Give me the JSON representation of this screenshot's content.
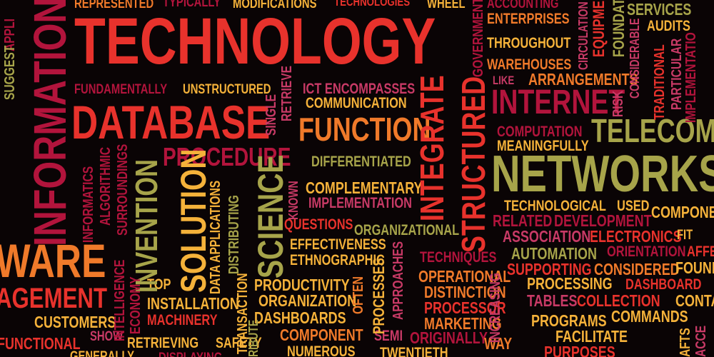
{
  "palette": {
    "red": "#e8322c",
    "orange": "#f07a2a",
    "amber": "#f5b23a",
    "olive": "#a7a44a",
    "crimson": "#b2143c",
    "pink": "#c83a66",
    "gold": "#e9a33a"
  },
  "words": [
    {
      "text": "REPRESENTED",
      "color": "#f07a2a"
    },
    {
      "text": "TYPICALLY",
      "color": "#b2143c"
    },
    {
      "text": "MODIFICATIONS",
      "color": "#f5b23a"
    },
    {
      "text": "TECHNOLOGIES",
      "color": "#e8322c"
    },
    {
      "text": "WHEEL",
      "color": "#f5b23a"
    },
    {
      "text": "ACCOUNTING",
      "color": "#b2143c"
    },
    {
      "text": "SERVICES",
      "color": "#a7a44a"
    },
    {
      "text": "ENTERPRISES",
      "color": "#f07a2a"
    },
    {
      "text": "AUDITS",
      "color": "#f5b23a"
    },
    {
      "text": "TECHNOLOGY",
      "color": "#e8322c"
    },
    {
      "text": "THROUGHOUT",
      "color": "#f5b23a"
    },
    {
      "text": "WAREHOUSES",
      "color": "#f07a2a"
    },
    {
      "text": "ARRANGEMENTS",
      "color": "#f07a2a"
    },
    {
      "text": "LIKE",
      "color": "#c83a66"
    },
    {
      "text": "FUNDAMENTALLY",
      "color": "#b2143c"
    },
    {
      "text": "UNSTRUCTURED",
      "color": "#f5b23a"
    },
    {
      "text": "ICT ENCOMPASSES",
      "color": "#c83a66"
    },
    {
      "text": "COMMUNICATION",
      "color": "#f5b23a"
    },
    {
      "text": "INTERNET",
      "color": "#b2143c"
    },
    {
      "text": "DATABASE",
      "color": "#e8322c"
    },
    {
      "text": "FUNCTION",
      "color": "#f07a2a"
    },
    {
      "text": "COMPUTATION",
      "color": "#b2143c"
    },
    {
      "text": "TELECOMM",
      "color": "#a7a44a"
    },
    {
      "text": "MEANINGFULLY",
      "color": "#f5b23a"
    },
    {
      "text": "PROCEDURE",
      "color": "#b2143c"
    },
    {
      "text": "DIFFERENTIATED",
      "color": "#a7a44a"
    },
    {
      "text": "NETWORKSO",
      "color": "#a7a44a"
    },
    {
      "text": "COMPLEMENTARY",
      "color": "#f5b23a"
    },
    {
      "text": "IMPLEMENTATION",
      "color": "#c83a66"
    },
    {
      "text": "TECHNOLOGICAL",
      "color": "#f5b23a"
    },
    {
      "text": "USED",
      "color": "#f5b23a"
    },
    {
      "text": "COMPONE",
      "color": "#f5b23a"
    },
    {
      "text": "RELATED",
      "color": "#b2143c"
    },
    {
      "text": "DEVELOPMENT",
      "color": "#b2143c"
    },
    {
      "text": "QUESTIONS",
      "color": "#e8322c"
    },
    {
      "text": "ORGANIZATIONAL",
      "color": "#a7a44a"
    },
    {
      "text": "ASSOCIATION",
      "color": "#c83a66"
    },
    {
      "text": "ELECTRONICS",
      "color": "#e8322c"
    },
    {
      "text": "FIT",
      "color": "#f5b23a"
    },
    {
      "text": "EFFECTIVENESS",
      "color": "#f5b23a"
    },
    {
      "text": "ORIENTATION",
      "color": "#b2143c"
    },
    {
      "text": "AFFE",
      "color": "#e8322c"
    },
    {
      "text": "WARE",
      "color": "#f07a2a"
    },
    {
      "text": "ETHNOGRAPHIC",
      "color": "#f5b23a"
    },
    {
      "text": "TECHNIQUES",
      "color": "#b2143c"
    },
    {
      "text": "AUTOMATION",
      "color": "#a7a44a"
    },
    {
      "text": "SUPPORTING",
      "color": "#e8322c"
    },
    {
      "text": "CONSIDERED",
      "color": "#f07a2a"
    },
    {
      "text": "FOUND",
      "color": "#f5b23a"
    },
    {
      "text": "TOP",
      "color": "#f5b23a"
    },
    {
      "text": "PRODUCTIVITY",
      "color": "#f5b23a"
    },
    {
      "text": "OPERATIONAL",
      "color": "#f07a2a"
    },
    {
      "text": "PROCESSING",
      "color": "#f5b23a"
    },
    {
      "text": "DASHBOARD",
      "color": "#e8322c"
    },
    {
      "text": "AGEMENT",
      "color": "#e8322c"
    },
    {
      "text": "ORGANIZATION",
      "color": "#f5b23a"
    },
    {
      "text": "DISTINCTION",
      "color": "#f07a2a"
    },
    {
      "text": "TABLES",
      "color": "#c83a66"
    },
    {
      "text": "COLLECTION",
      "color": "#e8322c"
    },
    {
      "text": "CONTAINI",
      "color": "#f5b23a"
    },
    {
      "text": "INSTALLATION",
      "color": "#f5b23a"
    },
    {
      "text": "PROCESSOR",
      "color": "#e8322c"
    },
    {
      "text": "CUSTOMERS",
      "color": "#f5b23a"
    },
    {
      "text": "MACHINERY",
      "color": "#e8322c"
    },
    {
      "text": "DASHBOARDS",
      "color": "#f5b23a"
    },
    {
      "text": "MARKETING",
      "color": "#f07a2a"
    },
    {
      "text": "PROGRAMS",
      "color": "#f5b23a"
    },
    {
      "text": "COMMANDS",
      "color": "#f5b23a"
    },
    {
      "text": "FUNCTIONAL",
      "color": "#e8322c"
    },
    {
      "text": "SHOW",
      "color": "#c83a66"
    },
    {
      "text": "RETRIEVING",
      "color": "#f5b23a"
    },
    {
      "text": "SAFETY",
      "color": "#f5b23a"
    },
    {
      "text": "COMPONENT",
      "color": "#f07a2a"
    },
    {
      "text": "SEMI",
      "color": "#c83a66"
    },
    {
      "text": "ORIGINALLY",
      "color": "#b2143c"
    },
    {
      "text": "WAY",
      "color": "#f07a2a"
    },
    {
      "text": "FACILITATE",
      "color": "#f5b23a"
    },
    {
      "text": "GENERALLY",
      "color": "#f5b23a"
    },
    {
      "text": "DISPLAYING",
      "color": "#b2143c"
    },
    {
      "text": "NUMEROUS",
      "color": "#f5b23a"
    },
    {
      "text": "TWENTIETH",
      "color": "#f5b23a"
    },
    {
      "text": "PURPOSES",
      "color": "#e8322c"
    },
    {
      "text": "INFORMATION",
      "color": "#b2143c"
    },
    {
      "text": "APPLI",
      "color": "#b2143c"
    },
    {
      "text": "SUGGEST",
      "color": "#a7a44a"
    },
    {
      "text": "INTEGRATE",
      "color": "#e8322c"
    },
    {
      "text": "STRUCTURED",
      "color": "#e8322c"
    },
    {
      "text": "SCIENCE",
      "color": "#a7a44a"
    },
    {
      "text": "SOLUTION",
      "color": "#f5b23a"
    },
    {
      "text": "INVENTION",
      "color": "#a7a44a"
    },
    {
      "text": "INFORMATICS",
      "color": "#b2143c"
    },
    {
      "text": "ALGORITHMIC",
      "color": "#b2143c"
    },
    {
      "text": "SURROUNDINGS",
      "color": "#b2143c"
    },
    {
      "text": "INTELLIGENCE",
      "color": "#b2143c"
    },
    {
      "text": "ECONOMY",
      "color": "#b2143c"
    },
    {
      "text": "DATA APPLICATIONS",
      "color": "#f5b23a"
    },
    {
      "text": "DISTRIBUTING",
      "color": "#a7a44a"
    },
    {
      "text": "TRANSACTION",
      "color": "#f5b23a"
    },
    {
      "text": "RETRIEVE",
      "color": "#c83a66"
    },
    {
      "text": "SINGLE",
      "color": "#c83a66"
    },
    {
      "text": "KNOWN",
      "color": "#c83a66"
    },
    {
      "text": "APPROACHES",
      "color": "#c83a66"
    },
    {
      "text": "PROCESSES",
      "color": "#f5b23a"
    },
    {
      "text": "OFTEN",
      "color": "#f07a2a"
    },
    {
      "text": "RIBUTE",
      "color": "#a7a44a"
    },
    {
      "text": "INCREASING",
      "color": "#c83a66"
    },
    {
      "text": "GOVERNMENT",
      "color": "#b2143c"
    },
    {
      "text": "CIRCULATION",
      "color": "#c83a66"
    },
    {
      "text": "EQUIPMENT",
      "color": "#e8322c"
    },
    {
      "text": "FOUNDATI",
      "color": "#a7a44a"
    },
    {
      "text": "CONSIDERABLE",
      "color": "#c83a66"
    },
    {
      "text": "RISK",
      "color": "#c83a66"
    },
    {
      "text": "TRADITIONAL",
      "color": "#e8322c"
    },
    {
      "text": "PARTICULAR",
      "color": "#c83a66"
    },
    {
      "text": "IMPLEMENTATIO",
      "color": "#b2143c"
    },
    {
      "text": "AFTS",
      "color": "#f5b23a"
    },
    {
      "text": "ACCE",
      "color": "#c83a66"
    }
  ]
}
